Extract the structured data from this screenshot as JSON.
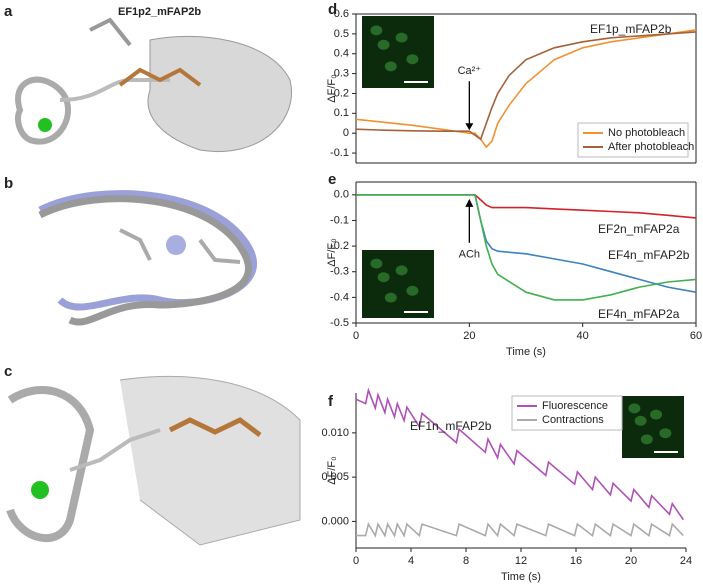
{
  "structure_panels": [
    {
      "label": "a",
      "title": "EF1p2_mFAP2b"
    },
    {
      "label": "b"
    },
    {
      "label": "c"
    }
  ],
  "chart_data": [
    {
      "type": "line",
      "panel_label": "d",
      "title": "EF1p_mFAP2b",
      "title_color": "#f0922e",
      "ylabel": "ΔF/F₀",
      "annotation": "Ca²⁺",
      "legend": "lower right",
      "xlim": [
        0,
        60
      ],
      "ylim": [
        -0.15,
        0.6
      ],
      "yticks": [
        -0.1,
        0,
        0.1,
        0.2,
        0.3,
        0.4,
        0.5,
        0.6
      ],
      "x": [
        0,
        5,
        10,
        15,
        20,
        21,
        22,
        23,
        24,
        25,
        27,
        30,
        35,
        40,
        45,
        50,
        55,
        60
      ],
      "series": [
        {
          "name": "No photobleach",
          "color": "#f0922e",
          "values": [
            0.07,
            0.055,
            0.04,
            0.02,
            0.0,
            0.0,
            -0.03,
            -0.07,
            -0.04,
            0.05,
            0.14,
            0.25,
            0.37,
            0.43,
            0.46,
            0.48,
            0.5,
            0.52
          ]
        },
        {
          "name": "After photobleach",
          "color": "#a5613a",
          "values": [
            0.02,
            0.015,
            0.012,
            0.01,
            0.01,
            -0.01,
            -0.03,
            0.05,
            0.13,
            0.2,
            0.29,
            0.37,
            0.43,
            0.46,
            0.48,
            0.49,
            0.5,
            0.51
          ]
        }
      ]
    },
    {
      "type": "line",
      "panel_label": "e",
      "xlabel": "Time (s)",
      "ylabel": "ΔF/F₀",
      "annotation": "ACh",
      "direct_labels": true,
      "xlim": [
        0,
        60
      ],
      "ylim": [
        -0.5,
        0.05
      ],
      "xticks": [
        0,
        20,
        40,
        60
      ],
      "yticks": [
        -0.5,
        -0.4,
        -0.3,
        -0.2,
        -0.1,
        {
          "value": 0,
          "label": "0.0"
        }
      ],
      "x": [
        0,
        10,
        20,
        21,
        22,
        23,
        24,
        25,
        30,
        35,
        40,
        45,
        50,
        55,
        60
      ],
      "series": [
        {
          "name": "EF2n_mFAP2a",
          "color": "#d2232a",
          "values": [
            0.0,
            0.0,
            0.0,
            0.0,
            -0.02,
            -0.04,
            -0.05,
            -0.05,
            -0.05,
            -0.055,
            -0.06,
            -0.065,
            -0.07,
            -0.08,
            -0.09
          ]
        },
        {
          "name": "EF4n_mFAP2b",
          "color": "#3b82c0",
          "values": [
            0.0,
            0.0,
            0.0,
            0.0,
            -0.1,
            -0.18,
            -0.21,
            -0.22,
            -0.23,
            -0.25,
            -0.27,
            -0.3,
            -0.33,
            -0.36,
            -0.38
          ]
        },
        {
          "name": "EF4n_mFAP2a",
          "color": "#42b04f",
          "values": [
            0.0,
            0.0,
            0.0,
            0.0,
            -0.1,
            -0.2,
            -0.27,
            -0.31,
            -0.38,
            -0.41,
            -0.41,
            -0.39,
            -0.36,
            -0.34,
            -0.33
          ]
        }
      ]
    },
    {
      "type": "line",
      "panel_label": "f",
      "title": "EF1n_mFAP2b",
      "title_color": "#b050b8",
      "xlabel": "Time (s)",
      "ylabel": "ΔF/F₀",
      "legend": "upper center",
      "xlim": [
        0,
        24
      ],
      "ylim": [
        -0.003,
        0.0145
      ],
      "xticks": [
        0,
        4,
        8,
        12,
        16,
        20,
        24
      ],
      "yticks": [
        {
          "value": 0,
          "label": "0.000"
        },
        {
          "value": 0.005,
          "label": "0.005"
        },
        {
          "value": 0.01,
          "label": "0.010"
        }
      ],
      "x": [
        0,
        0.7,
        0.9,
        1.4,
        1.6,
        2.1,
        2.3,
        2.8,
        3.0,
        3.5,
        3.7,
        4.6,
        4.8,
        7.3,
        7.5,
        9.4,
        9.6,
        10.3,
        10.5,
        11.5,
        11.7,
        13.8,
        14.0,
        15.9,
        16.1,
        17.2,
        17.4,
        18.5,
        18.7,
        20.0,
        20.2,
        21.3,
        21.5,
        22.8,
        23.0,
        23.8
      ],
      "series": [
        {
          "name": "Fluorescence",
          "color": "#b050b8",
          "values": [
            0.0138,
            0.0133,
            0.0148,
            0.0128,
            0.0143,
            0.0123,
            0.0138,
            0.0118,
            0.0133,
            0.0114,
            0.0129,
            0.0107,
            0.0122,
            0.0089,
            0.0104,
            0.0078,
            0.0093,
            0.0072,
            0.0087,
            0.0065,
            0.008,
            0.0052,
            0.0067,
            0.0042,
            0.0056,
            0.0036,
            0.005,
            0.003,
            0.0043,
            0.0023,
            0.0036,
            0.0016,
            0.0029,
            0.0008,
            0.002,
            0.0002
          ]
        },
        {
          "name": "Contractions",
          "color": "#aaaaaa",
          "values": [
            -0.0016,
            -0.0016,
            -0.0003,
            -0.0016,
            -0.0003,
            -0.0016,
            -0.0003,
            -0.0016,
            -0.0003,
            -0.0016,
            -0.0003,
            -0.0016,
            -0.0003,
            -0.0016,
            -0.0003,
            -0.0016,
            -0.0003,
            -0.0016,
            -0.0003,
            -0.0016,
            -0.0003,
            -0.0016,
            -0.0003,
            -0.0016,
            -0.0003,
            -0.0016,
            -0.0003,
            -0.0016,
            -0.0003,
            -0.0016,
            -0.0003,
            -0.0016,
            -0.0003,
            -0.0016,
            -0.0003,
            -0.0016
          ]
        }
      ]
    }
  ]
}
